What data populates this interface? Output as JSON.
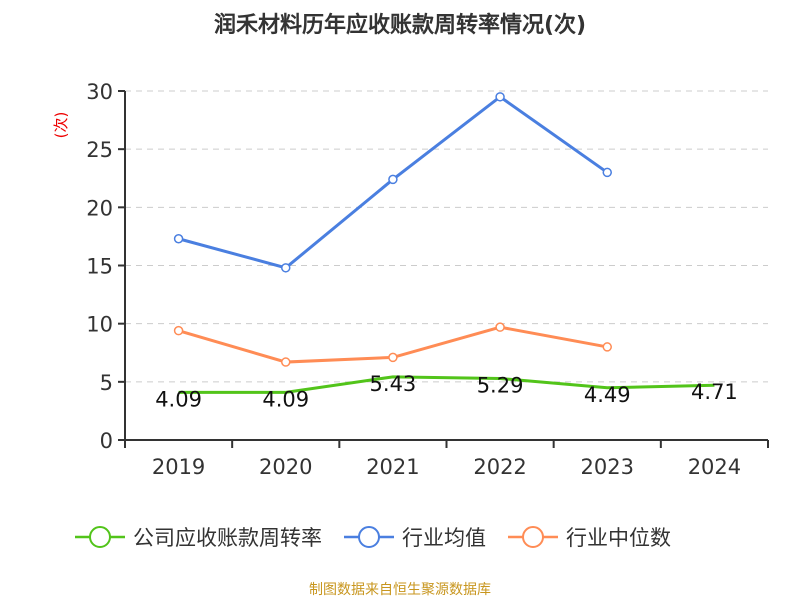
{
  "chart_data": {
    "type": "line",
    "title": "润禾材料历年应收账款周转率情况(次)",
    "ylabel": "(次)",
    "xlabel": "",
    "categories": [
      "2019",
      "2020",
      "2021",
      "2022",
      "2023",
      "2024"
    ],
    "ylim": [
      0,
      30
    ],
    "yticks": [
      0,
      5,
      10,
      15,
      20,
      25,
      30
    ],
    "grid": true,
    "legend_position": "bottom",
    "series": [
      {
        "name": "公司应收账款周转率",
        "color": "#52c41a",
        "values": [
          4.09,
          4.09,
          5.43,
          5.29,
          4.49,
          4.71
        ],
        "labels": [
          "4.09",
          "4.09",
          "5.43",
          "5.29",
          "4.49",
          "4.71"
        ]
      },
      {
        "name": "行业均值",
        "color": "#4a7fe0",
        "values": [
          17.3,
          14.8,
          22.4,
          29.5,
          23.0,
          null
        ]
      },
      {
        "name": "行业中位数",
        "color": "#ff8c55",
        "values": [
          9.4,
          6.7,
          7.1,
          9.7,
          8.0,
          null
        ]
      }
    ]
  },
  "footer": {
    "source": "制图数据来自恒生聚源数据库",
    "source_color": "#c8961e"
  }
}
